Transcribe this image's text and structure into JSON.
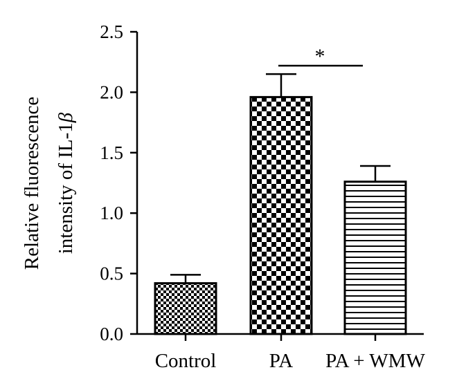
{
  "chart_data": {
    "type": "bar",
    "ylabel_line1": "Relative fluorescence",
    "ylabel_line2_prefix": "intensity of IL-1",
    "ylabel_line2_symbol": "β",
    "ylim": [
      0,
      2.5
    ],
    "yticks": [
      "0.0",
      "0.5",
      "1.0",
      "1.5",
      "2.0",
      "2.5"
    ],
    "categories": [
      "Control",
      "PA",
      "PA + WMW"
    ],
    "values": [
      0.42,
      1.96,
      1.26
    ],
    "errors": [
      0.07,
      0.19,
      0.13
    ],
    "patterns": [
      "fine-checker",
      "coarse-checker",
      "horizontal-lines"
    ],
    "significance": {
      "from": 1,
      "to": 2,
      "label": "*",
      "y": 2.22
    }
  }
}
